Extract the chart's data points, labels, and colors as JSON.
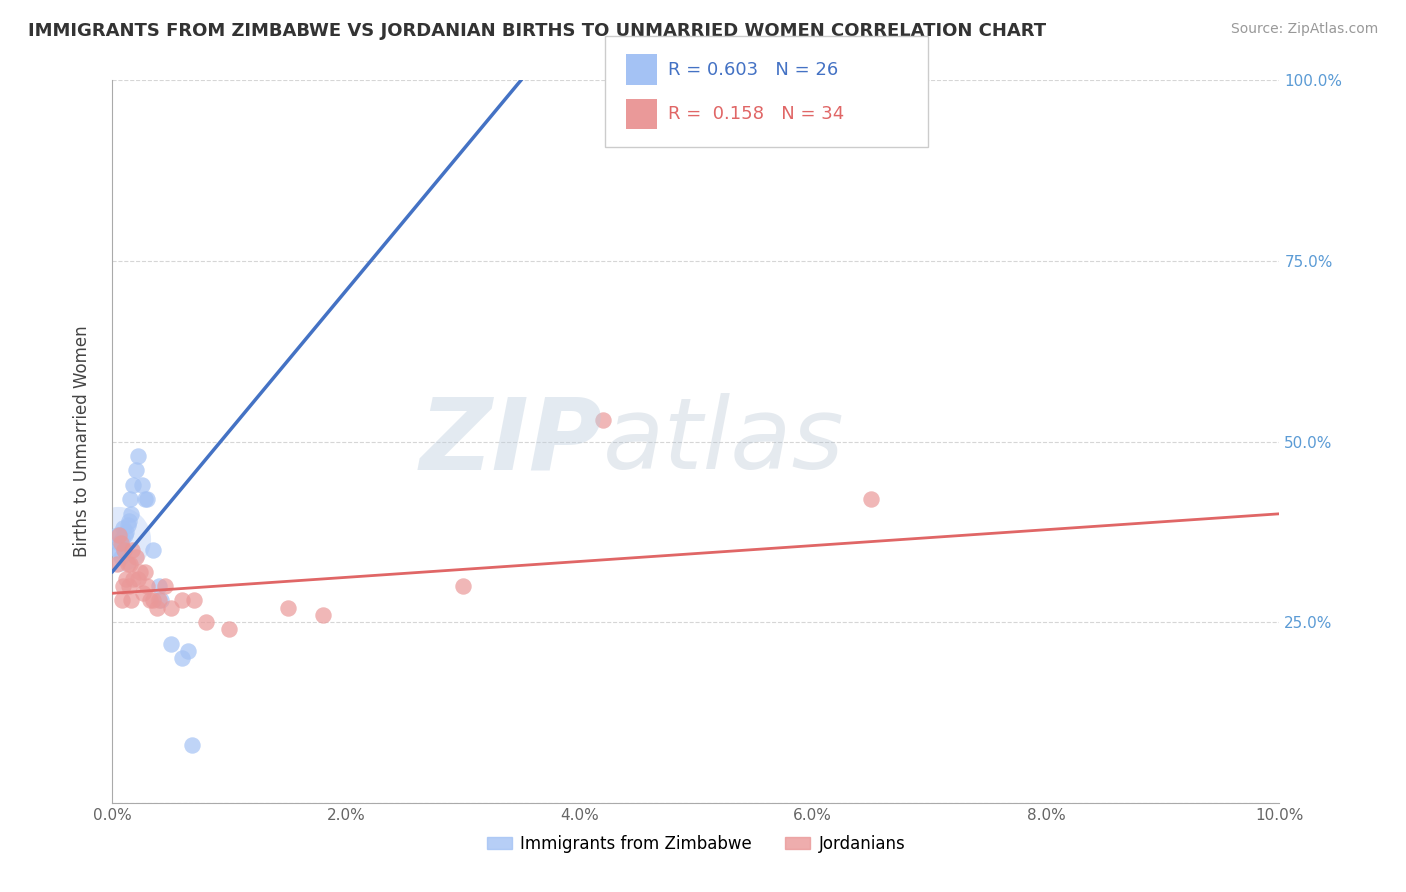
{
  "title": "IMMIGRANTS FROM ZIMBABWE VS JORDANIAN BIRTHS TO UNMARRIED WOMEN CORRELATION CHART",
  "source": "Source: ZipAtlas.com",
  "ylabel": "Births to Unmarried Women",
  "xlim": [
    0.0,
    10.0
  ],
  "ylim": [
    0.0,
    100.0
  ],
  "yticks": [
    0.0,
    25.0,
    50.0,
    75.0,
    100.0
  ],
  "xticks": [
    0.0,
    2.0,
    4.0,
    6.0,
    8.0,
    10.0
  ],
  "blue_color": "#a4c2f4",
  "pink_color": "#ea9999",
  "line_blue": "#4472c4",
  "line_pink": "#e06666",
  "blue_scatter": [
    [
      0.04,
      37.0
    ],
    [
      0.05,
      35.0
    ],
    [
      0.06,
      36.0
    ],
    [
      0.07,
      34.0
    ],
    [
      0.08,
      36.5
    ],
    [
      0.09,
      38.0
    ],
    [
      0.1,
      35.0
    ],
    [
      0.11,
      37.0
    ],
    [
      0.12,
      37.5
    ],
    [
      0.13,
      38.5
    ],
    [
      0.14,
      39.0
    ],
    [
      0.15,
      42.0
    ],
    [
      0.16,
      40.0
    ],
    [
      0.18,
      44.0
    ],
    [
      0.2,
      46.0
    ],
    [
      0.22,
      48.0
    ],
    [
      0.25,
      44.0
    ],
    [
      0.28,
      42.0
    ],
    [
      0.3,
      42.0
    ],
    [
      0.35,
      35.0
    ],
    [
      0.4,
      30.0
    ],
    [
      0.42,
      28.0
    ],
    [
      0.5,
      22.0
    ],
    [
      0.6,
      20.0
    ],
    [
      0.65,
      21.0
    ],
    [
      0.68,
      8.0
    ]
  ],
  "pink_scatter": [
    [
      0.04,
      33.0
    ],
    [
      0.06,
      37.0
    ],
    [
      0.07,
      36.0
    ],
    [
      0.08,
      28.0
    ],
    [
      0.09,
      30.0
    ],
    [
      0.1,
      35.0
    ],
    [
      0.12,
      31.0
    ],
    [
      0.13,
      33.0
    ],
    [
      0.14,
      30.0
    ],
    [
      0.15,
      33.0
    ],
    [
      0.16,
      28.0
    ],
    [
      0.17,
      35.0
    ],
    [
      0.18,
      31.0
    ],
    [
      0.2,
      34.0
    ],
    [
      0.22,
      31.0
    ],
    [
      0.24,
      32.0
    ],
    [
      0.26,
      29.0
    ],
    [
      0.28,
      32.0
    ],
    [
      0.3,
      30.0
    ],
    [
      0.32,
      28.0
    ],
    [
      0.35,
      28.0
    ],
    [
      0.38,
      27.0
    ],
    [
      0.4,
      28.0
    ],
    [
      0.45,
      30.0
    ],
    [
      0.5,
      27.0
    ],
    [
      0.6,
      28.0
    ],
    [
      0.7,
      28.0
    ],
    [
      0.8,
      25.0
    ],
    [
      1.0,
      24.0
    ],
    [
      1.5,
      27.0
    ],
    [
      1.8,
      26.0
    ],
    [
      3.0,
      30.0
    ],
    [
      4.2,
      53.0
    ],
    [
      6.5,
      42.0
    ]
  ],
  "blue_line_x0": 0.0,
  "blue_line_y0": 32.0,
  "blue_line_x1": 3.5,
  "blue_line_y1": 100.0,
  "pink_line_x0": 0.0,
  "pink_line_y0": 29.0,
  "pink_line_x1": 10.0,
  "pink_line_y1": 40.0,
  "large_blob_x": 0.05,
  "large_blob_y": 36.5,
  "watermark_zip": "ZIP",
  "watermark_atlas": "atlas",
  "background_color": "#ffffff"
}
